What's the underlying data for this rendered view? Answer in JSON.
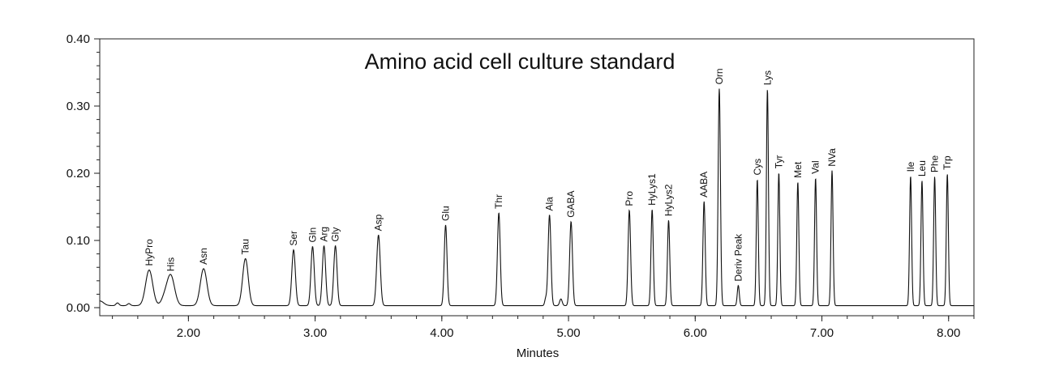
{
  "chart_data": {
    "type": "line",
    "title": "Amino acid cell culture standard",
    "xlabel": "Minutes",
    "ylabel": "",
    "xlim": [
      1.3,
      8.2
    ],
    "ylim": [
      -0.012,
      0.4
    ],
    "grid": false,
    "x_ticks": [
      {
        "value": 2.0,
        "label": "2.00"
      },
      {
        "value": 3.0,
        "label": "3.00"
      },
      {
        "value": 4.0,
        "label": "4.00"
      },
      {
        "value": 5.0,
        "label": "5.00"
      },
      {
        "value": 6.0,
        "label": "6.00"
      },
      {
        "value": 7.0,
        "label": "7.00"
      },
      {
        "value": 8.0,
        "label": "8.00"
      }
    ],
    "y_ticks": [
      {
        "value": 0.0,
        "label": "0.00"
      },
      {
        "value": 0.1,
        "label": "0.10"
      },
      {
        "value": 0.2,
        "label": "0.20"
      },
      {
        "value": 0.3,
        "label": "0.30"
      },
      {
        "value": 0.4,
        "label": "0.40"
      }
    ],
    "baseline": 0.003,
    "peaks": [
      {
        "name": "HyPro",
        "x": 1.69,
        "height": 0.053,
        "width": 0.028
      },
      {
        "name": "His",
        "x": 1.86,
        "height": 0.045,
        "width": 0.03
      },
      {
        "name": "Asn",
        "x": 2.12,
        "height": 0.055,
        "width": 0.026
      },
      {
        "name": "Tau",
        "x": 2.45,
        "height": 0.07,
        "width": 0.022
      },
      {
        "name": "Ser",
        "x": 2.83,
        "height": 0.083,
        "width": 0.014
      },
      {
        "name": "Gln",
        "x": 2.98,
        "height": 0.088,
        "width": 0.013
      },
      {
        "name": "Arg",
        "x": 3.07,
        "height": 0.089,
        "width": 0.013
      },
      {
        "name": "Gly",
        "x": 3.16,
        "height": 0.089,
        "width": 0.013
      },
      {
        "name": "Asp",
        "x": 3.5,
        "height": 0.105,
        "width": 0.014
      },
      {
        "name": "Glu",
        "x": 4.03,
        "height": 0.12,
        "width": 0.011
      },
      {
        "name": "Thr",
        "x": 4.45,
        "height": 0.138,
        "width": 0.011
      },
      {
        "name": "Ala",
        "x": 4.85,
        "height": 0.135,
        "width": 0.011
      },
      {
        "name": "GABA",
        "x": 5.02,
        "height": 0.125,
        "width": 0.011
      },
      {
        "name": "Pro",
        "x": 5.48,
        "height": 0.142,
        "width": 0.01
      },
      {
        "name": "HyLys1",
        "x": 5.66,
        "height": 0.143,
        "width": 0.009
      },
      {
        "name": "HyLys2",
        "x": 5.79,
        "height": 0.127,
        "width": 0.009
      },
      {
        "name": "AABA",
        "x": 6.07,
        "height": 0.155,
        "width": 0.009
      },
      {
        "name": "Orn",
        "x": 6.19,
        "height": 0.323,
        "width": 0.009
      },
      {
        "name": "Deriv Peak",
        "x": 6.34,
        "height": 0.03,
        "width": 0.008
      },
      {
        "name": "Cys",
        "x": 6.49,
        "height": 0.188,
        "width": 0.008
      },
      {
        "name": "Lys",
        "x": 6.57,
        "height": 0.322,
        "width": 0.008
      },
      {
        "name": "Tyr",
        "x": 6.66,
        "height": 0.198,
        "width": 0.008
      },
      {
        "name": "Met",
        "x": 6.81,
        "height": 0.184,
        "width": 0.008
      },
      {
        "name": "Val",
        "x": 6.95,
        "height": 0.19,
        "width": 0.008
      },
      {
        "name": "NVa",
        "x": 7.08,
        "height": 0.201,
        "width": 0.008
      },
      {
        "name": "Ile",
        "x": 7.7,
        "height": 0.193,
        "width": 0.008
      },
      {
        "name": "Leu",
        "x": 7.79,
        "height": 0.186,
        "width": 0.008
      },
      {
        "name": "Phe",
        "x": 7.89,
        "height": 0.192,
        "width": 0.008
      },
      {
        "name": "Trp",
        "x": 7.99,
        "height": 0.196,
        "width": 0.008
      }
    ],
    "minor_peaks": [
      {
        "x": 1.3,
        "height": 0.007,
        "width": 0.03
      },
      {
        "x": 1.44,
        "height": 0.004,
        "width": 0.012
      },
      {
        "x": 1.53,
        "height": 0.003,
        "width": 0.012
      },
      {
        "x": 1.81,
        "height": 0.01,
        "width": 0.025
      },
      {
        "x": 4.82,
        "height": 0.01,
        "width": 0.008
      },
      {
        "x": 4.94,
        "height": 0.01,
        "width": 0.01
      }
    ],
    "line_color": "#111111"
  }
}
